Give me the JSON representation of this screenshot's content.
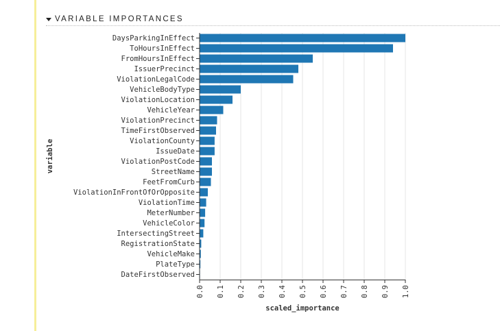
{
  "section": {
    "title": "VARIABLE IMPORTANCES",
    "collapse_icon": "caret-down-icon"
  },
  "chart_data": {
    "type": "bar",
    "orientation": "horizontal",
    "xlabel": "scaled_importance",
    "ylabel": "variable",
    "xlim": [
      0,
      1.0
    ],
    "xticks": [
      "0.0",
      "0.1",
      "0.2",
      "0.3",
      "0.4",
      "0.5",
      "0.6",
      "0.7",
      "0.8",
      "0.9",
      "1.0"
    ],
    "grid": true,
    "bar_color": "#1f77b4",
    "categories": [
      "DaysParkingInEffect",
      "ToHoursInEffect",
      "FromHoursInEffect",
      "IssuerPrecinct",
      "ViolationLegalCode",
      "VehicleBodyType",
      "ViolationLocation",
      "VehicleYear",
      "ViolationPrecinct",
      "TimeFirstObserved",
      "ViolationCounty",
      "IssueDate",
      "ViolationPostCode",
      "StreetName",
      "FeetFromCurb",
      "ViolationInFrontOfOrOpposite",
      "ViolationTime",
      "MeterNumber",
      "VehicleColor",
      "IntersectingStreet",
      "RegistrationState",
      "VehicleMake",
      "PlateType",
      "DateFirstObserved"
    ],
    "values": [
      1.0,
      0.94,
      0.55,
      0.48,
      0.455,
      0.2,
      0.16,
      0.115,
      0.085,
      0.08,
      0.073,
      0.073,
      0.06,
      0.06,
      0.055,
      0.04,
      0.032,
      0.027,
      0.024,
      0.018,
      0.008,
      0.006,
      0.004,
      0.002
    ]
  }
}
